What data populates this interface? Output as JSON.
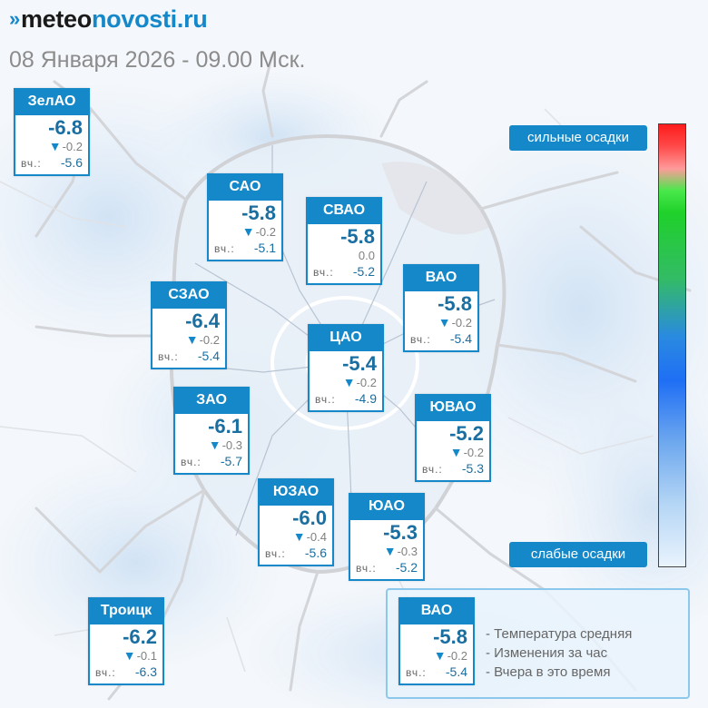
{
  "header": {
    "logo_mark": "»",
    "logo_meteo": "meteo",
    "logo_novosti": "novosti.ru",
    "date": "08 Января 2026 - 09.00 Мск."
  },
  "colors": {
    "accent": "#1488c8",
    "temp_text": "#1a6ea0",
    "arrow": "#1488c8"
  },
  "legend": {
    "strong_label": "сильные осадки",
    "weak_label": "слабые осадки",
    "sample": {
      "name": "ВАО",
      "temp": "-5.8",
      "change": "-0.2",
      "yesterday_label": "вч.:",
      "yesterday": "-5.4"
    },
    "lines": [
      "- Температура средняя",
      "- Изменения за час",
      "- Вчера в это время"
    ]
  },
  "districts": [
    {
      "name": "ЗелАО",
      "temp": "-6.8",
      "change": "-0.2",
      "down": true,
      "yesterday_label": "вч.:",
      "yesterday": "-5.6"
    },
    {
      "name": "САО",
      "temp": "-5.8",
      "change": "-0.2",
      "down": true,
      "yesterday_label": "вч.:",
      "yesterday": "-5.1"
    },
    {
      "name": "СВАО",
      "temp": "-5.8",
      "change": "0.0",
      "down": false,
      "yesterday_label": "вч.:",
      "yesterday": "-5.2"
    },
    {
      "name": "ВАО",
      "temp": "-5.8",
      "change": "-0.2",
      "down": true,
      "yesterday_label": "вч.:",
      "yesterday": "-5.4"
    },
    {
      "name": "СЗАО",
      "temp": "-6.4",
      "change": "-0.2",
      "down": true,
      "yesterday_label": "вч.:",
      "yesterday": "-5.4"
    },
    {
      "name": "ЦАО",
      "temp": "-5.4",
      "change": "-0.2",
      "down": true,
      "yesterday_label": "вч.:",
      "yesterday": "-4.9"
    },
    {
      "name": "ЗАО",
      "temp": "-6.1",
      "change": "-0.3",
      "down": true,
      "yesterday_label": "вч.:",
      "yesterday": "-5.7"
    },
    {
      "name": "ЮВАО",
      "temp": "-5.2",
      "change": "-0.2",
      "down": true,
      "yesterday_label": "вч.:",
      "yesterday": "-5.3"
    },
    {
      "name": "ЮЗАО",
      "temp": "-6.0",
      "change": "-0.4",
      "down": true,
      "yesterday_label": "вч.:",
      "yesterday": "-5.6"
    },
    {
      "name": "ЮАО",
      "temp": "-5.3",
      "change": "-0.3",
      "down": true,
      "yesterday_label": "вч.:",
      "yesterday": "-5.2"
    },
    {
      "name": "Троицк",
      "temp": "-6.2",
      "change": "-0.1",
      "down": true,
      "yesterday_label": "вч.:",
      "yesterday": "-6.3"
    }
  ]
}
